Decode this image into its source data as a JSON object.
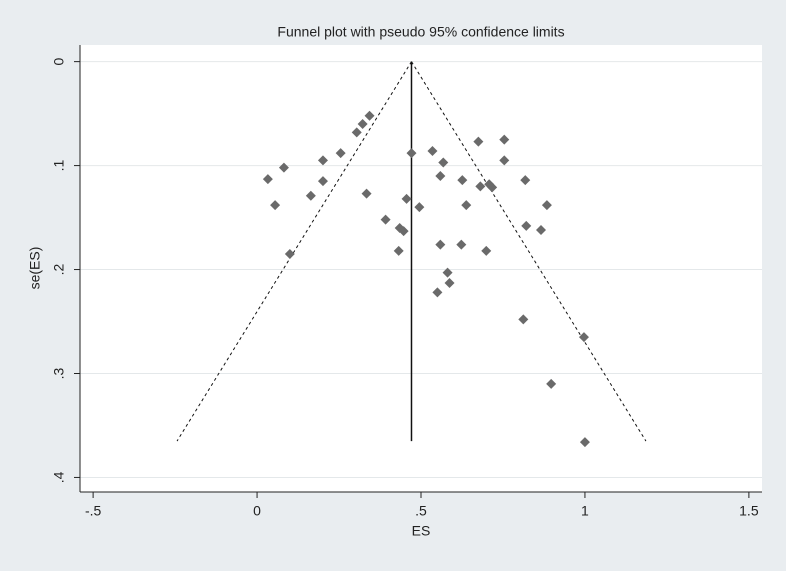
{
  "chart_data": {
    "type": "scatter",
    "title": "Funnel plot with pseudo 95% confidence limits",
    "x_label": "ES",
    "y_label": "se(ES)",
    "xlim": [
      -0.54,
      1.54
    ],
    "ylim": [
      -0.016,
      0.414
    ],
    "y_reversed": true,
    "grid": true,
    "xticks": [
      {
        "value": -0.5,
        "label": "-.5"
      },
      0,
      {
        "value": 0.5,
        "label": ".5"
      },
      1,
      1.5
    ],
    "yticks": [
      0,
      {
        "value": 0.1,
        "label": ".1"
      },
      {
        "value": 0.2,
        "label": ".2"
      },
      {
        "value": 0.3,
        "label": ".3"
      },
      {
        "value": 0.4,
        "label": ".4"
      }
    ],
    "color": "#6a6a6a",
    "x": [
      0.033,
      0.082,
      0.055,
      0.1,
      0.201,
      0.201,
      0.164,
      0.255,
      0.304,
      0.322,
      0.343,
      0.334,
      0.392,
      0.435,
      0.447,
      0.432,
      0.456,
      0.471,
      0.495,
      0.535,
      0.568,
      0.559,
      0.559,
      0.581,
      0.587,
      0.55,
      0.623,
      0.626,
      0.638,
      0.675,
      0.681,
      0.708,
      0.717,
      0.699,
      0.754,
      0.754,
      0.818,
      0.821,
      0.866,
      0.884,
      0.812,
      0.997,
      0.897,
      1.0
    ],
    "y": [
      0.113,
      0.102,
      0.138,
      0.185,
      0.095,
      0.115,
      0.129,
      0.088,
      0.068,
      0.06,
      0.052,
      0.127,
      0.152,
      0.16,
      0.163,
      0.182,
      0.132,
      0.088,
      0.14,
      0.086,
      0.097,
      0.11,
      0.176,
      0.203,
      0.213,
      0.222,
      0.176,
      0.114,
      0.138,
      0.077,
      0.12,
      0.118,
      0.121,
      0.182,
      0.075,
      0.095,
      0.114,
      0.158,
      0.162,
      0.138,
      0.248,
      0.265,
      0.31,
      0.366
    ],
    "lines": [
      {
        "x": [
          0.471,
          -0.244
        ],
        "y": [
          0,
          0.365
        ],
        "dashed": true
      },
      {
        "x": [
          0.471,
          1.186
        ],
        "y": [
          0,
          0.365
        ],
        "dashed": true
      },
      {
        "x": [
          0.471,
          0.471
        ],
        "y": [
          0,
          0.365
        ],
        "dashed": false
      }
    ]
  }
}
